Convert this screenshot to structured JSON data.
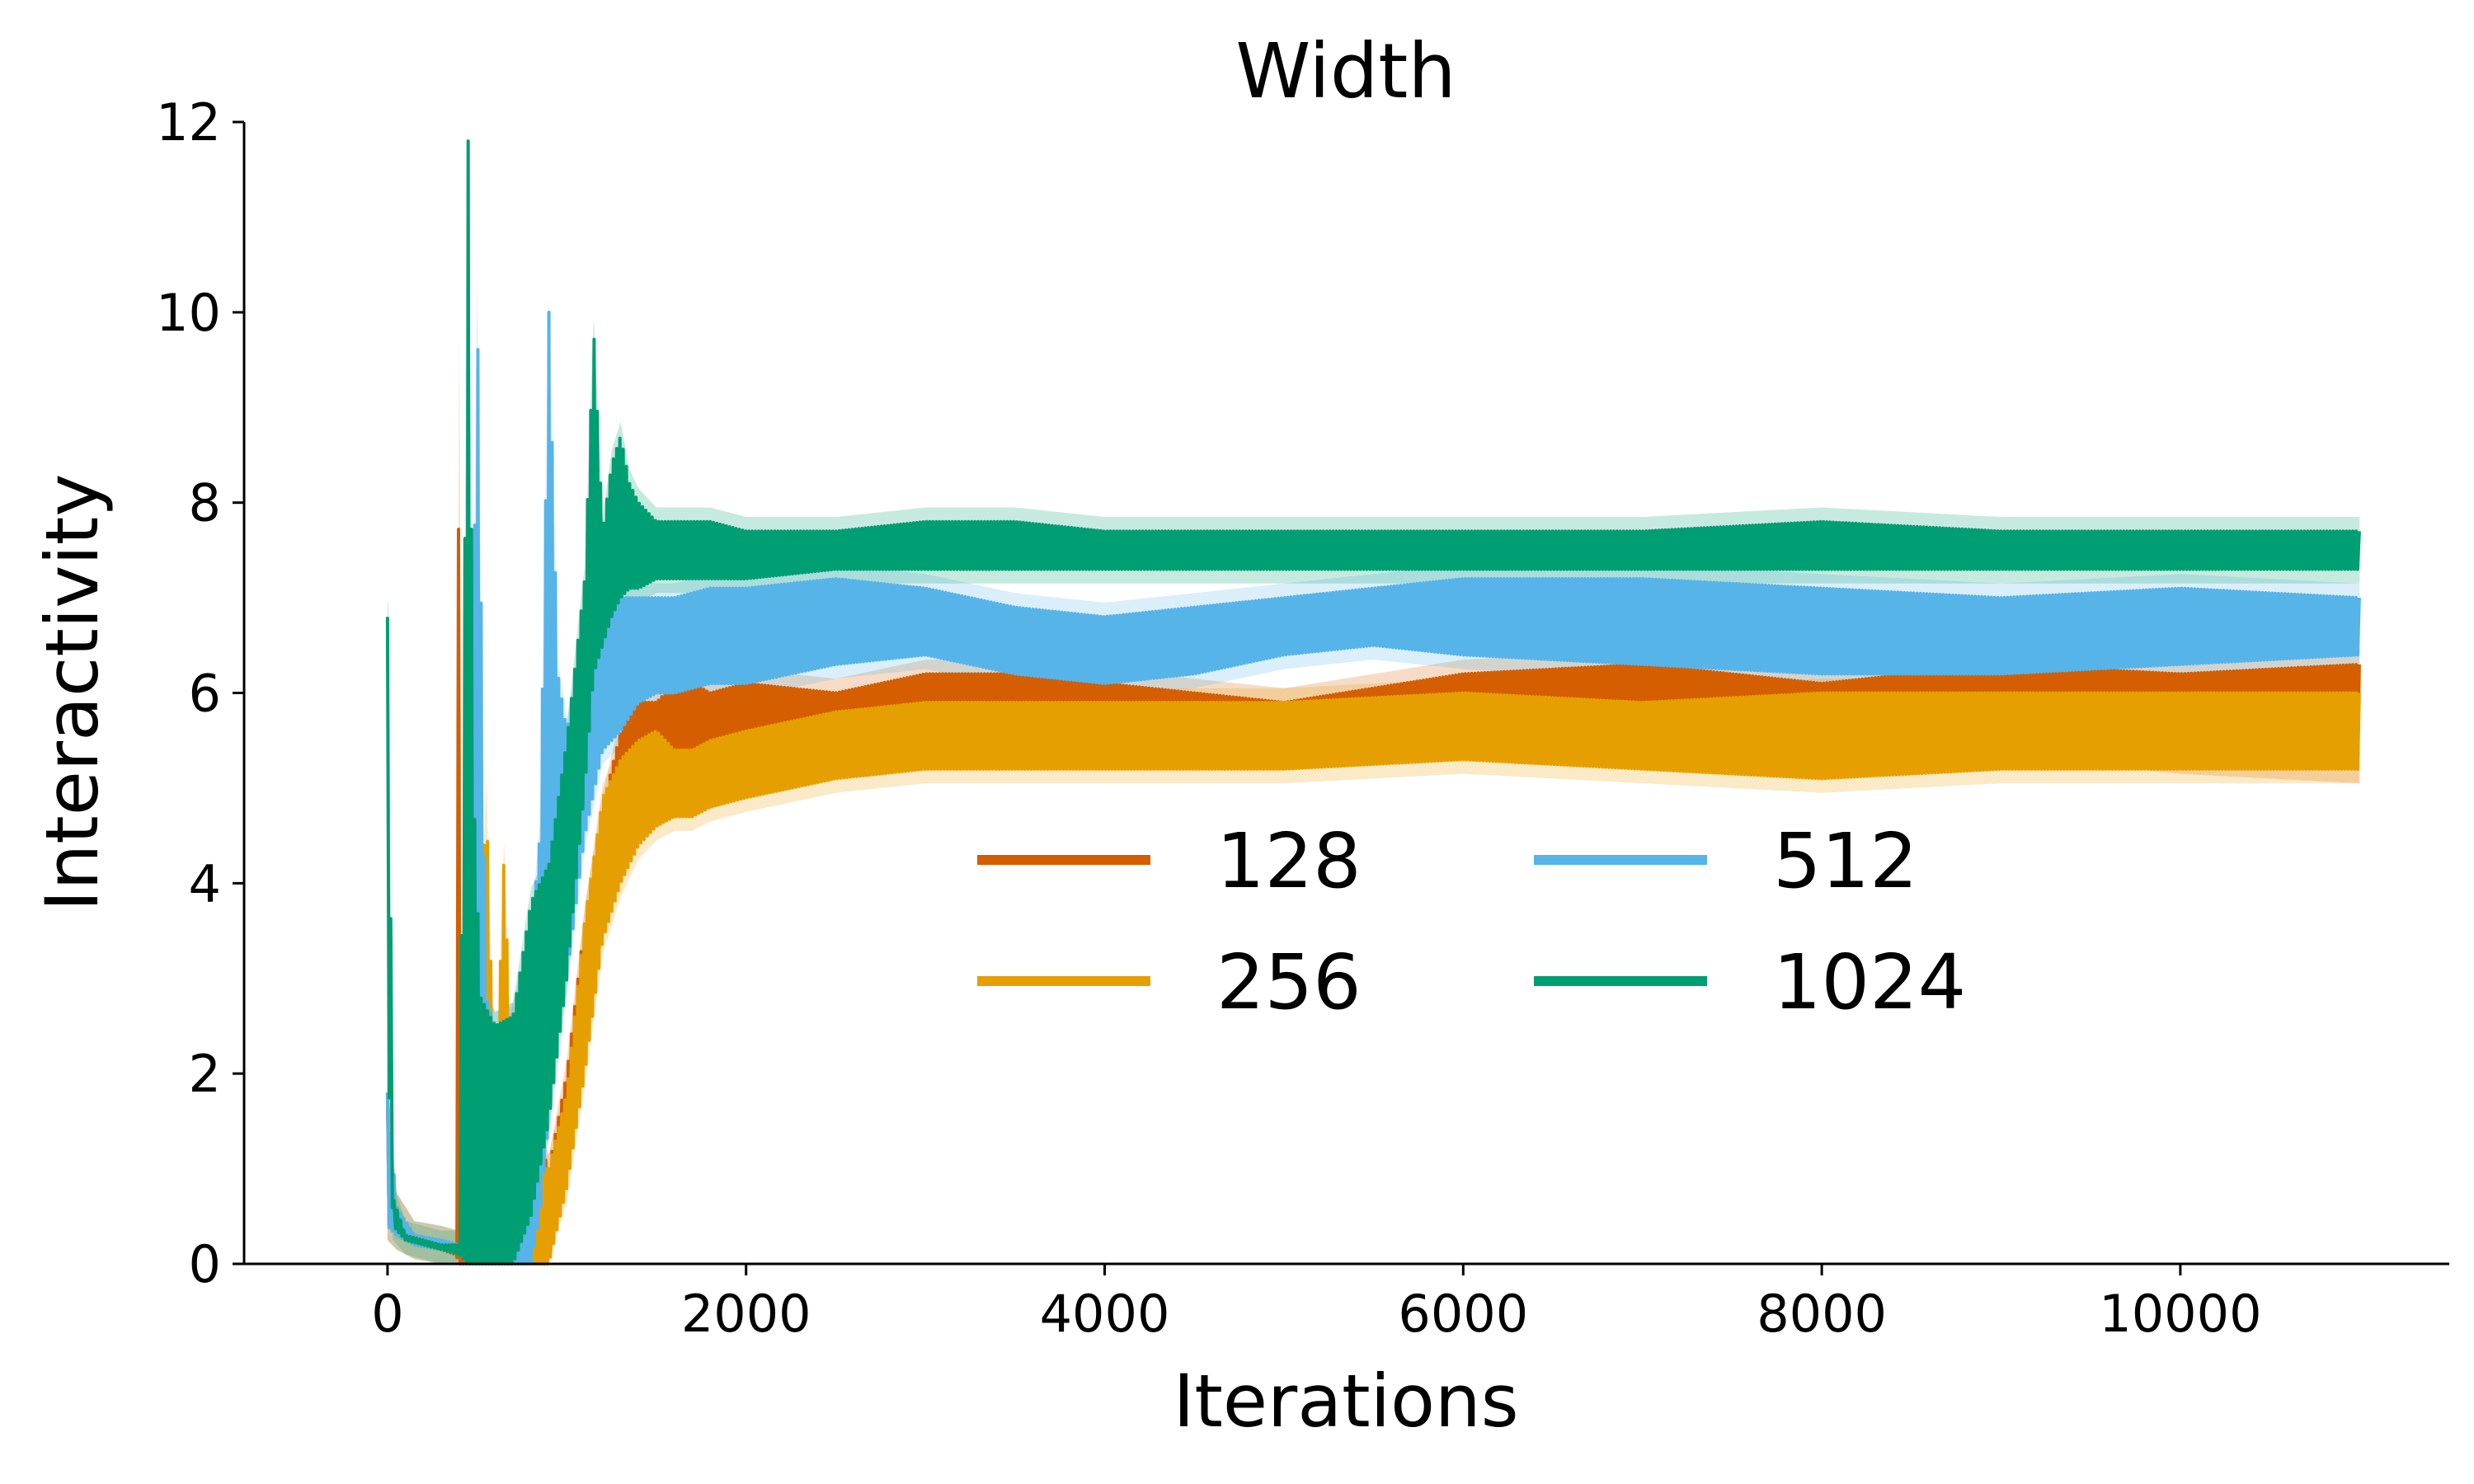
{
  "chart_data": {
    "type": "line",
    "title": "Width",
    "xlabel": "Iterations",
    "ylabel": "Interactivity",
    "xlim": [
      -800,
      11500
    ],
    "ylim": [
      0,
      12
    ],
    "xticks": [
      0,
      2000,
      4000,
      6000,
      8000,
      10000
    ],
    "xtick_labels": [
      "0",
      "2000",
      "4000",
      "6000",
      "8000",
      "10000"
    ],
    "yticks": [
      0,
      2,
      4,
      6,
      8,
      10,
      12
    ],
    "ytick_labels": [
      "0",
      "2",
      "4",
      "6",
      "8",
      "10",
      "12"
    ],
    "grid": false,
    "legend": {
      "placement": "center-right",
      "columns": 2
    },
    "series": [
      {
        "name": "128",
        "color": "#D55E00",
        "x": [
          0,
          50,
          150,
          300,
          380,
          400,
          420,
          440,
          500,
          600,
          700,
          800,
          900,
          1000,
          1100,
          1200,
          1300,
          1400,
          1500,
          1600,
          1700,
          1800,
          2000,
          2500,
          3000,
          3500,
          4000,
          5000,
          6000,
          7000,
          8000,
          9000,
          10000,
          11000
        ],
        "upper": [
          1.8,
          0.6,
          0.3,
          0.25,
          0.2,
          9.6,
          0.3,
          0.2,
          2.5,
          1.8,
          2.6,
          1.5,
          1.0,
          2.0,
          3.6,
          4.8,
          5.6,
          5.9,
          5.9,
          6.1,
          6.1,
          6.0,
          6.1,
          6.0,
          6.2,
          6.2,
          6.1,
          5.9,
          6.2,
          6.3,
          6.1,
          6.3,
          6.2,
          6.3
        ],
        "lower": [
          0.4,
          0.3,
          0.2,
          0.15,
          0.1,
          0.0,
          0.0,
          0.0,
          0.0,
          0.0,
          0.0,
          0.0,
          0.0,
          1.0,
          2.2,
          3.6,
          4.5,
          4.8,
          5.0,
          5.2,
          5.2,
          5.2,
          5.3,
          5.5,
          5.6,
          5.7,
          5.6,
          5.5,
          5.6,
          5.5,
          5.3,
          5.5,
          5.3,
          5.2
        ]
      },
      {
        "name": "256",
        "color": "#E69F00",
        "x": [
          0,
          50,
          150,
          300,
          400,
          500,
          550,
          600,
          650,
          700,
          800,
          900,
          1000,
          1100,
          1200,
          1300,
          1400,
          1500,
          1600,
          1700,
          1800,
          2000,
          2500,
          3000,
          3500,
          4000,
          5000,
          6000,
          7000,
          8000,
          9000,
          10000,
          11000
        ],
        "upper": [
          1.8,
          0.6,
          0.3,
          0.25,
          0.2,
          2.0,
          5.0,
          1.5,
          4.3,
          1.5,
          1.0,
          1.0,
          1.8,
          3.6,
          4.9,
          5.3,
          5.5,
          5.6,
          5.4,
          5.4,
          5.5,
          5.6,
          5.8,
          5.9,
          5.9,
          5.9,
          5.9,
          6.0,
          5.9,
          6.0,
          6.0,
          6.0,
          6.0
        ],
        "lower": [
          0.4,
          0.3,
          0.2,
          0.15,
          0.1,
          0.0,
          0.0,
          0.0,
          0.0,
          0.0,
          0.0,
          0.0,
          0.8,
          2.0,
          3.4,
          4.0,
          4.4,
          4.6,
          4.7,
          4.7,
          4.8,
          4.9,
          5.1,
          5.2,
          5.2,
          5.2,
          5.2,
          5.3,
          5.2,
          5.1,
          5.2,
          5.2,
          5.2
        ]
      },
      {
        "name": "512",
        "color": "#56B4E9",
        "x": [
          0,
          50,
          150,
          300,
          400,
          450,
          500,
          550,
          600,
          700,
          800,
          850,
          900,
          950,
          1000,
          1100,
          1200,
          1300,
          1400,
          1500,
          1600,
          1800,
          2000,
          2500,
          3000,
          3500,
          4000,
          4500,
          5000,
          5500,
          6000,
          7000,
          8000,
          9000,
          10000,
          11000
        ],
        "upper": [
          1.8,
          0.6,
          0.3,
          0.25,
          0.2,
          1.5,
          10.2,
          2.8,
          2.5,
          2.6,
          3.4,
          4.5,
          10.0,
          6.2,
          5.6,
          6.5,
          6.7,
          7.0,
          7.0,
          7.0,
          7.0,
          7.1,
          7.1,
          7.2,
          7.1,
          6.9,
          6.8,
          6.9,
          7.0,
          7.1,
          7.2,
          7.2,
          7.1,
          7.0,
          7.1,
          7.0
        ],
        "lower": [
          0.4,
          0.3,
          0.2,
          0.15,
          0.1,
          0.0,
          0.0,
          0.0,
          0.0,
          0.0,
          0.0,
          0.5,
          1.5,
          2.5,
          3.0,
          4.5,
          5.4,
          5.6,
          5.9,
          6.0,
          6.0,
          6.1,
          6.1,
          6.3,
          6.4,
          6.2,
          6.1,
          6.2,
          6.4,
          6.5,
          6.4,
          6.3,
          6.2,
          6.2,
          6.3,
          6.4
        ]
      },
      {
        "name": "1024",
        "color": "#009E73",
        "x": [
          0,
          5,
          30,
          100,
          200,
          300,
          400,
          450,
          480,
          520,
          600,
          700,
          800,
          900,
          1000,
          1100,
          1150,
          1200,
          1250,
          1300,
          1350,
          1400,
          1500,
          1600,
          1800,
          2000,
          2500,
          3000,
          3500,
          4000,
          5000,
          6000,
          7000,
          8000,
          9000,
          10000,
          11000
        ],
        "upper": [
          6.8,
          6.8,
          0.7,
          0.3,
          0.25,
          0.2,
          0.2,
          11.8,
          5.0,
          2.8,
          2.5,
          2.6,
          3.8,
          4.2,
          5.5,
          7.2,
          9.8,
          7.7,
          8.4,
          8.7,
          8.2,
          8.0,
          7.8,
          7.8,
          7.8,
          7.7,
          7.7,
          7.8,
          7.8,
          7.7,
          7.7,
          7.7,
          7.7,
          7.8,
          7.7,
          7.7,
          7.7
        ],
        "lower": [
          0.4,
          2.0,
          0.4,
          0.25,
          0.2,
          0.15,
          0.1,
          0.0,
          0.0,
          0.0,
          0.0,
          0.0,
          0.5,
          1.5,
          3.0,
          5.0,
          6.2,
          6.5,
          6.8,
          7.0,
          7.1,
          7.1,
          7.2,
          7.2,
          7.2,
          7.2,
          7.3,
          7.3,
          7.3,
          7.3,
          7.3,
          7.3,
          7.3,
          7.3,
          7.3,
          7.3,
          7.3
        ]
      }
    ]
  }
}
